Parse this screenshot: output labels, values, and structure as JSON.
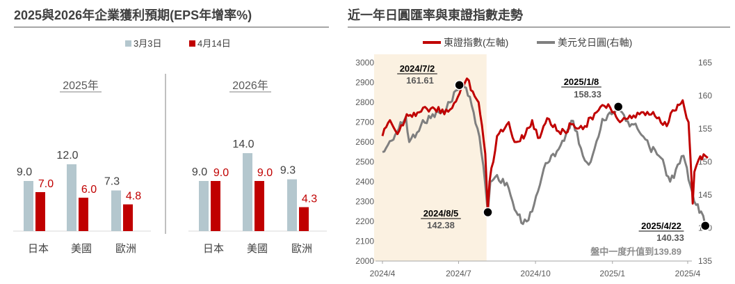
{
  "left_panel": {
    "title": "2025與2026年企業獲利預期(EPS年增率%)"
  },
  "right_panel": {
    "title": "近一年日圓匯率與東證指數走勢"
  },
  "colors": {
    "gray_bar": "#b4c7ce",
    "red_bar": "#c00000",
    "red_line": "#c00000",
    "gray_line": "#7f7f7f",
    "shade": "#fbf1e1",
    "title_text": "#404040"
  },
  "chart_data": [
    {
      "type": "bar",
      "groups": [
        "2025年",
        "2026年"
      ],
      "categories": [
        "日本",
        "美國",
        "歐洲"
      ],
      "series": [
        {
          "name": "3月3日",
          "color": "#b4c7ce",
          "values": [
            [
              9.0,
              12.0,
              7.3
            ],
            [
              9.0,
              14.0,
              9.3
            ]
          ]
        },
        {
          "name": "4月14日",
          "color": "#c00000",
          "values": [
            [
              7.0,
              6.0,
              4.8
            ],
            [
              9.0,
              9.0,
              4.3
            ]
          ]
        }
      ],
      "ylim": [
        0,
        16
      ]
    },
    {
      "type": "line",
      "legend": [
        "東證指數(左軸)",
        "美元兌日圓(右軸)"
      ],
      "x_ticks": [
        "2024/4",
        "2024/7",
        "2024/10",
        "2025/1",
        "2025/4"
      ],
      "y_left": {
        "ticks": [
          "3000",
          "2900",
          "2800",
          "2700",
          "2600",
          "2500",
          "2400",
          "2300",
          "2200",
          "2100",
          "2000"
        ],
        "ylim": [
          2000,
          3000
        ]
      },
      "y_right": {
        "ticks": [
          "165",
          "160",
          "155",
          "150",
          "145",
          "140",
          "135"
        ],
        "ylim": [
          135,
          165
        ]
      },
      "shaded_range": [
        "2024/4",
        "2024/8"
      ],
      "series": [
        {
          "name": "東證指數(左軸)",
          "axis": "left",
          "color": "#c00000",
          "points": [
            [
              "2024/4/1",
              2630
            ],
            [
              "2024/4/10",
              2710
            ],
            [
              "2024/4/19",
              2640
            ],
            [
              "2024/4/30",
              2740
            ],
            [
              "2024/5/15",
              2750
            ],
            [
              "2024/5/31",
              2775
            ],
            [
              "2024/6/14",
              2740
            ],
            [
              "2024/6/28",
              2805
            ],
            [
              "2024/7/11",
              2920
            ],
            [
              "2024/7/25",
              2800
            ],
            [
              "2024/8/2",
              2540
            ],
            [
              "2024/8/5",
              2250
            ],
            [
              "2024/8/7",
              2400
            ],
            [
              "2024/8/16",
              2630
            ],
            [
              "2024/8/30",
              2700
            ],
            [
              "2024/9/6",
              2600
            ],
            [
              "2024/9/19",
              2640
            ],
            [
              "2024/9/27",
              2710
            ],
            [
              "2024/10/4",
              2620
            ],
            [
              "2024/10/15",
              2720
            ],
            [
              "2024/10/31",
              2640
            ],
            [
              "2024/11/15",
              2690
            ],
            [
              "2024/11/29",
              2680
            ],
            [
              "2024/12/13",
              2750
            ],
            [
              "2024/12/27",
              2790
            ],
            [
              "2025/1/10",
              2700
            ],
            [
              "2025/1/24",
              2720
            ],
            [
              "2025/2/7",
              2750
            ],
            [
              "2025/2/21",
              2730
            ],
            [
              "2025/3/7",
              2680
            ],
            [
              "2025/3/14",
              2760
            ],
            [
              "2025/3/26",
              2810
            ],
            [
              "2025/4/2",
              2700
            ],
            [
              "2025/4/7",
              2290
            ],
            [
              "2025/4/9",
              2450
            ],
            [
              "2025/4/14",
              2510
            ],
            [
              "2025/4/22",
              2530
            ],
            [
              "2025/4/25",
              2520
            ]
          ]
        },
        {
          "name": "美元兌日圓(右軸)",
          "axis": "right",
          "color": "#7f7f7f",
          "points": [
            [
              "2024/4/1",
              151.5
            ],
            [
              "2024/4/12",
              153.2
            ],
            [
              "2024/4/29",
              156.8
            ],
            [
              "2024/5/3",
              153.0
            ],
            [
              "2024/5/17",
              155.5
            ],
            [
              "2024/5/31",
              157.2
            ],
            [
              "2024/6/14",
              157.5
            ],
            [
              "2024/6/28",
              160.8
            ],
            [
              "2024/7/2",
              161.61
            ],
            [
              "2024/7/10",
              161.2
            ],
            [
              "2024/7/19",
              157.5
            ],
            [
              "2024/7/26",
              153.8
            ],
            [
              "2024/8/2",
              146.5
            ],
            [
              "2024/8/5",
              142.38
            ],
            [
              "2024/8/8",
              147.0
            ],
            [
              "2024/8/16",
              148.0
            ],
            [
              "2024/8/30",
              146.0
            ],
            [
              "2024/9/6",
              142.8
            ],
            [
              "2024/9/16",
              140.6
            ],
            [
              "2024/9/27",
              142.5
            ],
            [
              "2024/10/11",
              149.0
            ],
            [
              "2024/10/31",
              152.5
            ],
            [
              "2024/11/15",
              156.2
            ],
            [
              "2024/11/29",
              150.2
            ],
            [
              "2024/12/6",
              150.0
            ],
            [
              "2024/12/20",
              156.5
            ],
            [
              "2024/12/31",
              157.2
            ],
            [
              "2025/1/8",
              158.33
            ],
            [
              "2025/1/17",
              156.2
            ],
            [
              "2025/1/31",
              155.0
            ],
            [
              "2025/2/14",
              152.3
            ],
            [
              "2025/2/28",
              150.6
            ],
            [
              "2025/3/11",
              147.0
            ],
            [
              "2025/3/27",
              150.9
            ],
            [
              "2025/4/4",
              146.5
            ],
            [
              "2025/4/11",
              143.5
            ],
            [
              "2025/4/17",
              142.5
            ],
            [
              "2025/4/22",
              140.33
            ]
          ]
        }
      ],
      "annotations": [
        {
          "date": "2024/7/2",
          "label": "2024/7/2",
          "value": "161.61"
        },
        {
          "date": "2024/8/5",
          "label": "2024/8/5",
          "value": "142.38"
        },
        {
          "date": "2025/1/8",
          "label": "2025/1/8",
          "value": "158.33"
        },
        {
          "date": "2025/4/22",
          "label": "2025/4/22",
          "value": "140.33"
        }
      ],
      "note": "盤中一度升值到139.89"
    }
  ]
}
